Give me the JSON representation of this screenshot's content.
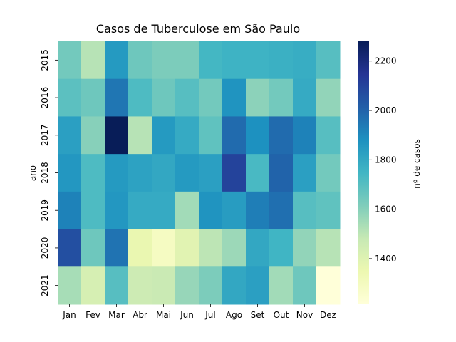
{
  "chart_data": {
    "type": "heatmap",
    "title": "Casos de Tuberculose em São Paulo",
    "xlabel": "",
    "ylabel": "ano",
    "colorbar_label": "nº de casos",
    "colormap": "YlGnBu",
    "vmin": 1215,
    "vmax": 2280,
    "colorbar_ticks": [
      1400,
      1600,
      1800,
      2000,
      2200
    ],
    "x_categories": [
      "Jan",
      "Fev",
      "Mar",
      "Abr",
      "Mai",
      "Jun",
      "Jul",
      "Ago",
      "Set",
      "Out",
      "Nov",
      "Dez"
    ],
    "y_categories": [
      "2015",
      "2016",
      "2017",
      "2018",
      "2019",
      "2020",
      "2021"
    ],
    "values": [
      [
        1640,
        1510,
        1850,
        1650,
        1620,
        1620,
        1740,
        1760,
        1760,
        1770,
        1780,
        1700
      ],
      [
        1690,
        1650,
        1950,
        1720,
        1650,
        1700,
        1640,
        1870,
        1590,
        1640,
        1790,
        1580
      ],
      [
        1830,
        1600,
        2280,
        1510,
        1850,
        1790,
        1680,
        1980,
        1880,
        1980,
        1920,
        1700
      ],
      [
        1860,
        1720,
        1850,
        1820,
        1800,
        1850,
        1830,
        2100,
        1730,
        2000,
        1830,
        1640
      ],
      [
        1920,
        1720,
        1860,
        1790,
        1790,
        1550,
        1870,
        1840,
        1930,
        1970,
        1700,
        1680
      ],
      [
        2060,
        1650,
        1960,
        1360,
        1290,
        1390,
        1500,
        1560,
        1800,
        1750,
        1580,
        1510
      ],
      [
        1540,
        1430,
        1700,
        1460,
        1470,
        1570,
        1620,
        1800,
        1830,
        1550,
        1650,
        1215
      ]
    ]
  }
}
